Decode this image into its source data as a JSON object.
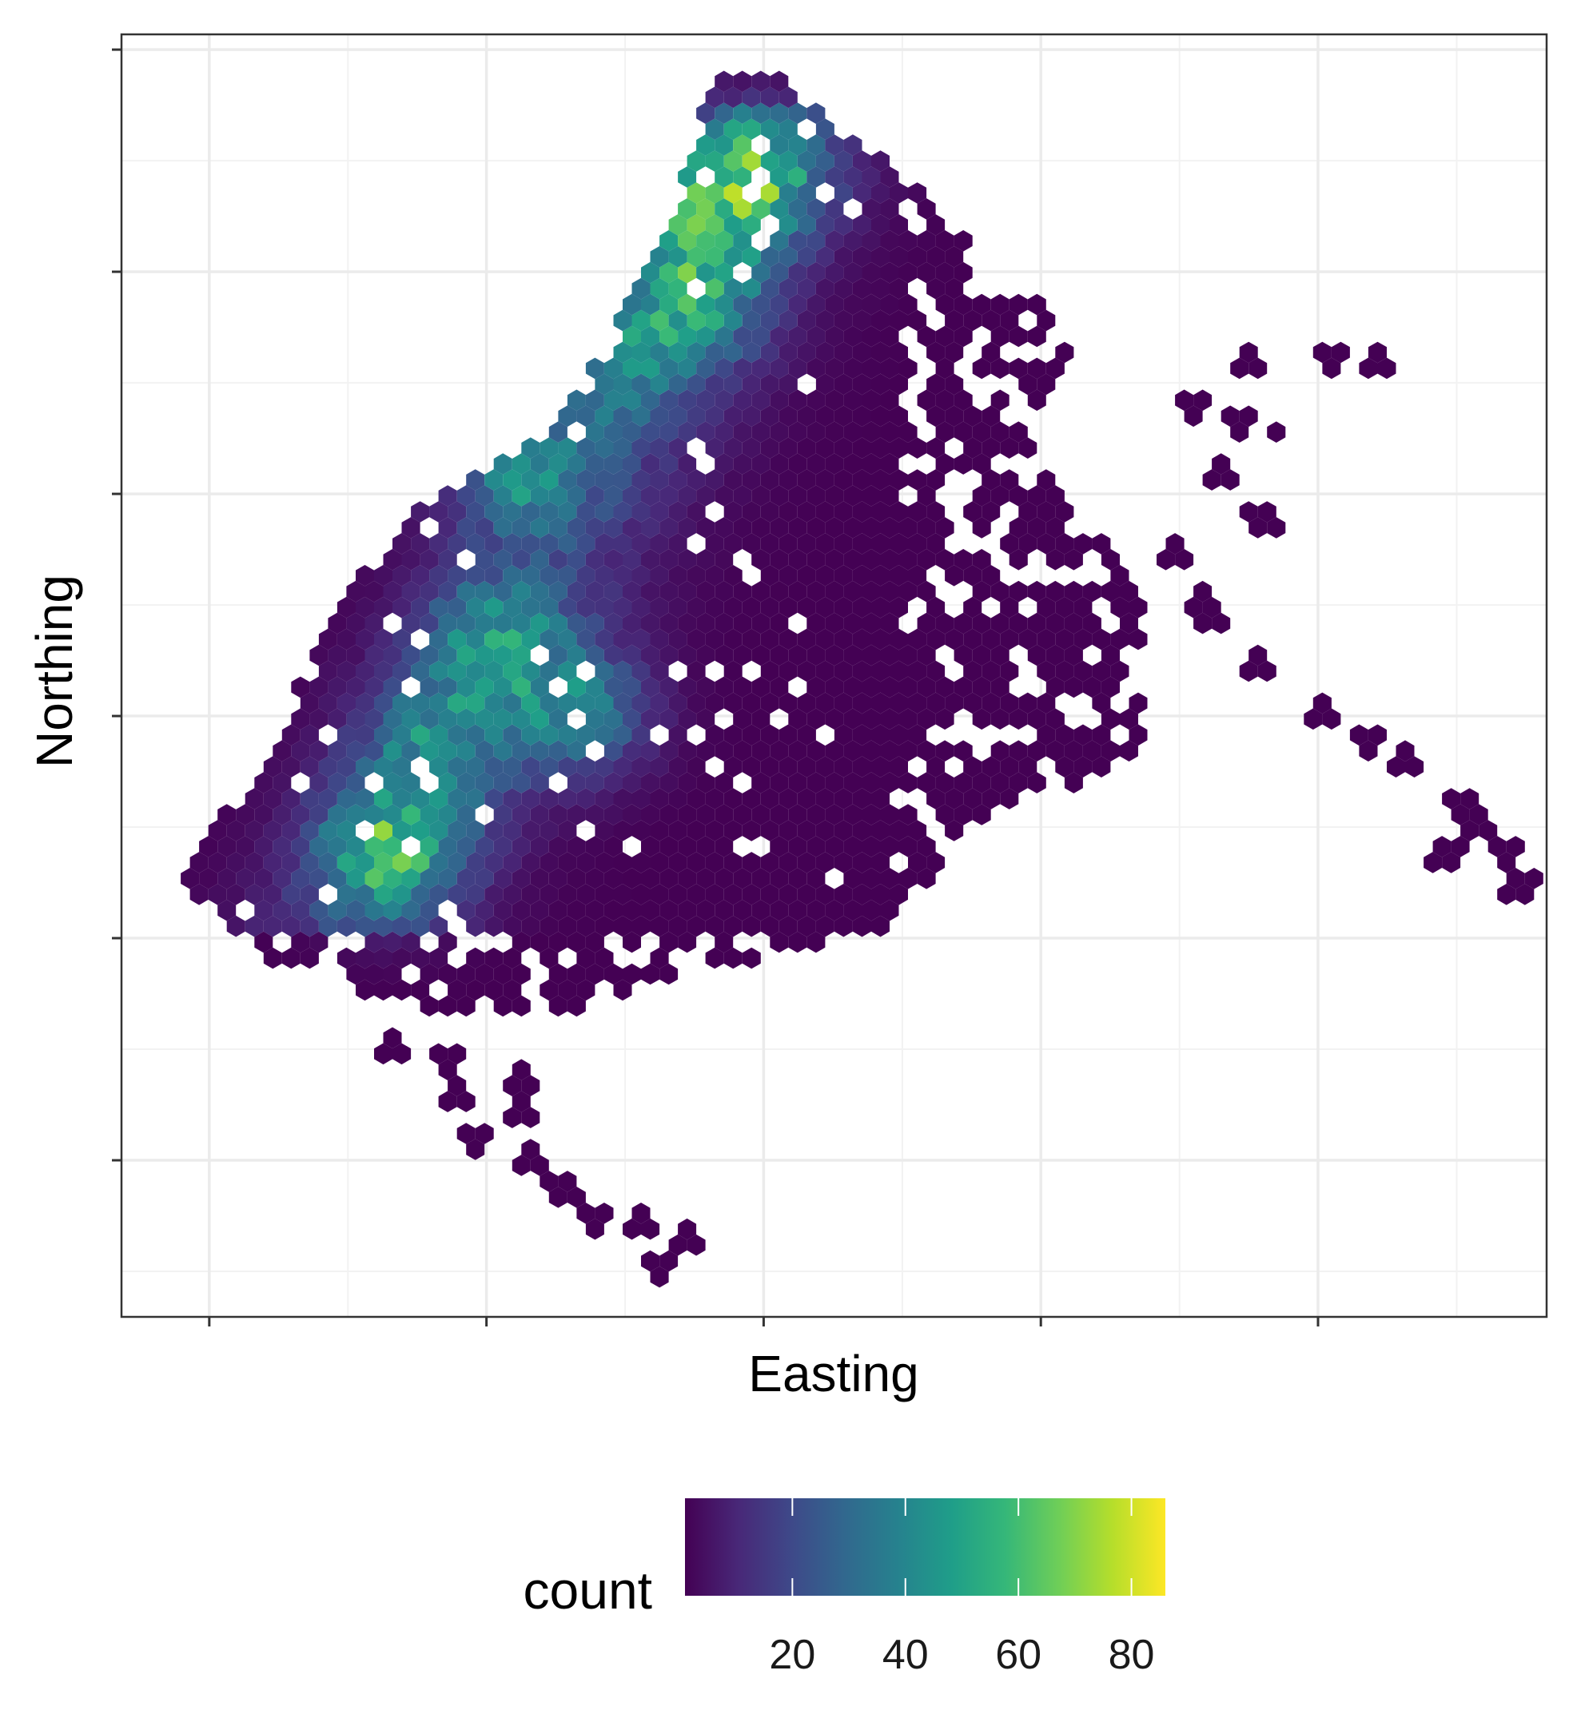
{
  "chart_data": {
    "type": "heatmap",
    "subtype": "hexbin",
    "title": "",
    "xlabel": "Easting",
    "ylabel": "Northing",
    "x_tick_labels": [],
    "y_tick_labels": [],
    "grid": true,
    "theme": "bw",
    "legend": {
      "title": "count",
      "position": "bottom",
      "ticks": [
        20,
        40,
        60,
        80
      ],
      "range": [
        1,
        86
      ],
      "colormap": "viridis"
    },
    "hotspots": [
      {
        "easting": 0.44,
        "northing": 0.89,
        "count": 86
      },
      {
        "easting": 0.188,
        "northing": 0.364,
        "count": 84
      },
      {
        "easting": 0.28,
        "northing": 0.66,
        "count": 62
      },
      {
        "easting": 0.4,
        "northing": 0.79,
        "count": 60
      },
      {
        "easting": 0.32,
        "northing": 0.47,
        "count": 58
      },
      {
        "easting": 0.262,
        "northing": 0.53,
        "count": 55
      },
      {
        "easting": 0.22,
        "northing": 0.45,
        "count": 50
      },
      {
        "easting": 0.4,
        "northing": 0.85,
        "count": 45
      },
      {
        "easting": 0.34,
        "northing": 0.74,
        "count": 42
      }
    ]
  },
  "colors": {
    "panel_border": "#333333",
    "grid_major": "#ebebeb",
    "viridis": [
      "#440154",
      "#482878",
      "#3e4989",
      "#31688e",
      "#26828e",
      "#1f9e89",
      "#35b779",
      "#6ece58",
      "#b5de2b",
      "#fde725"
    ]
  }
}
